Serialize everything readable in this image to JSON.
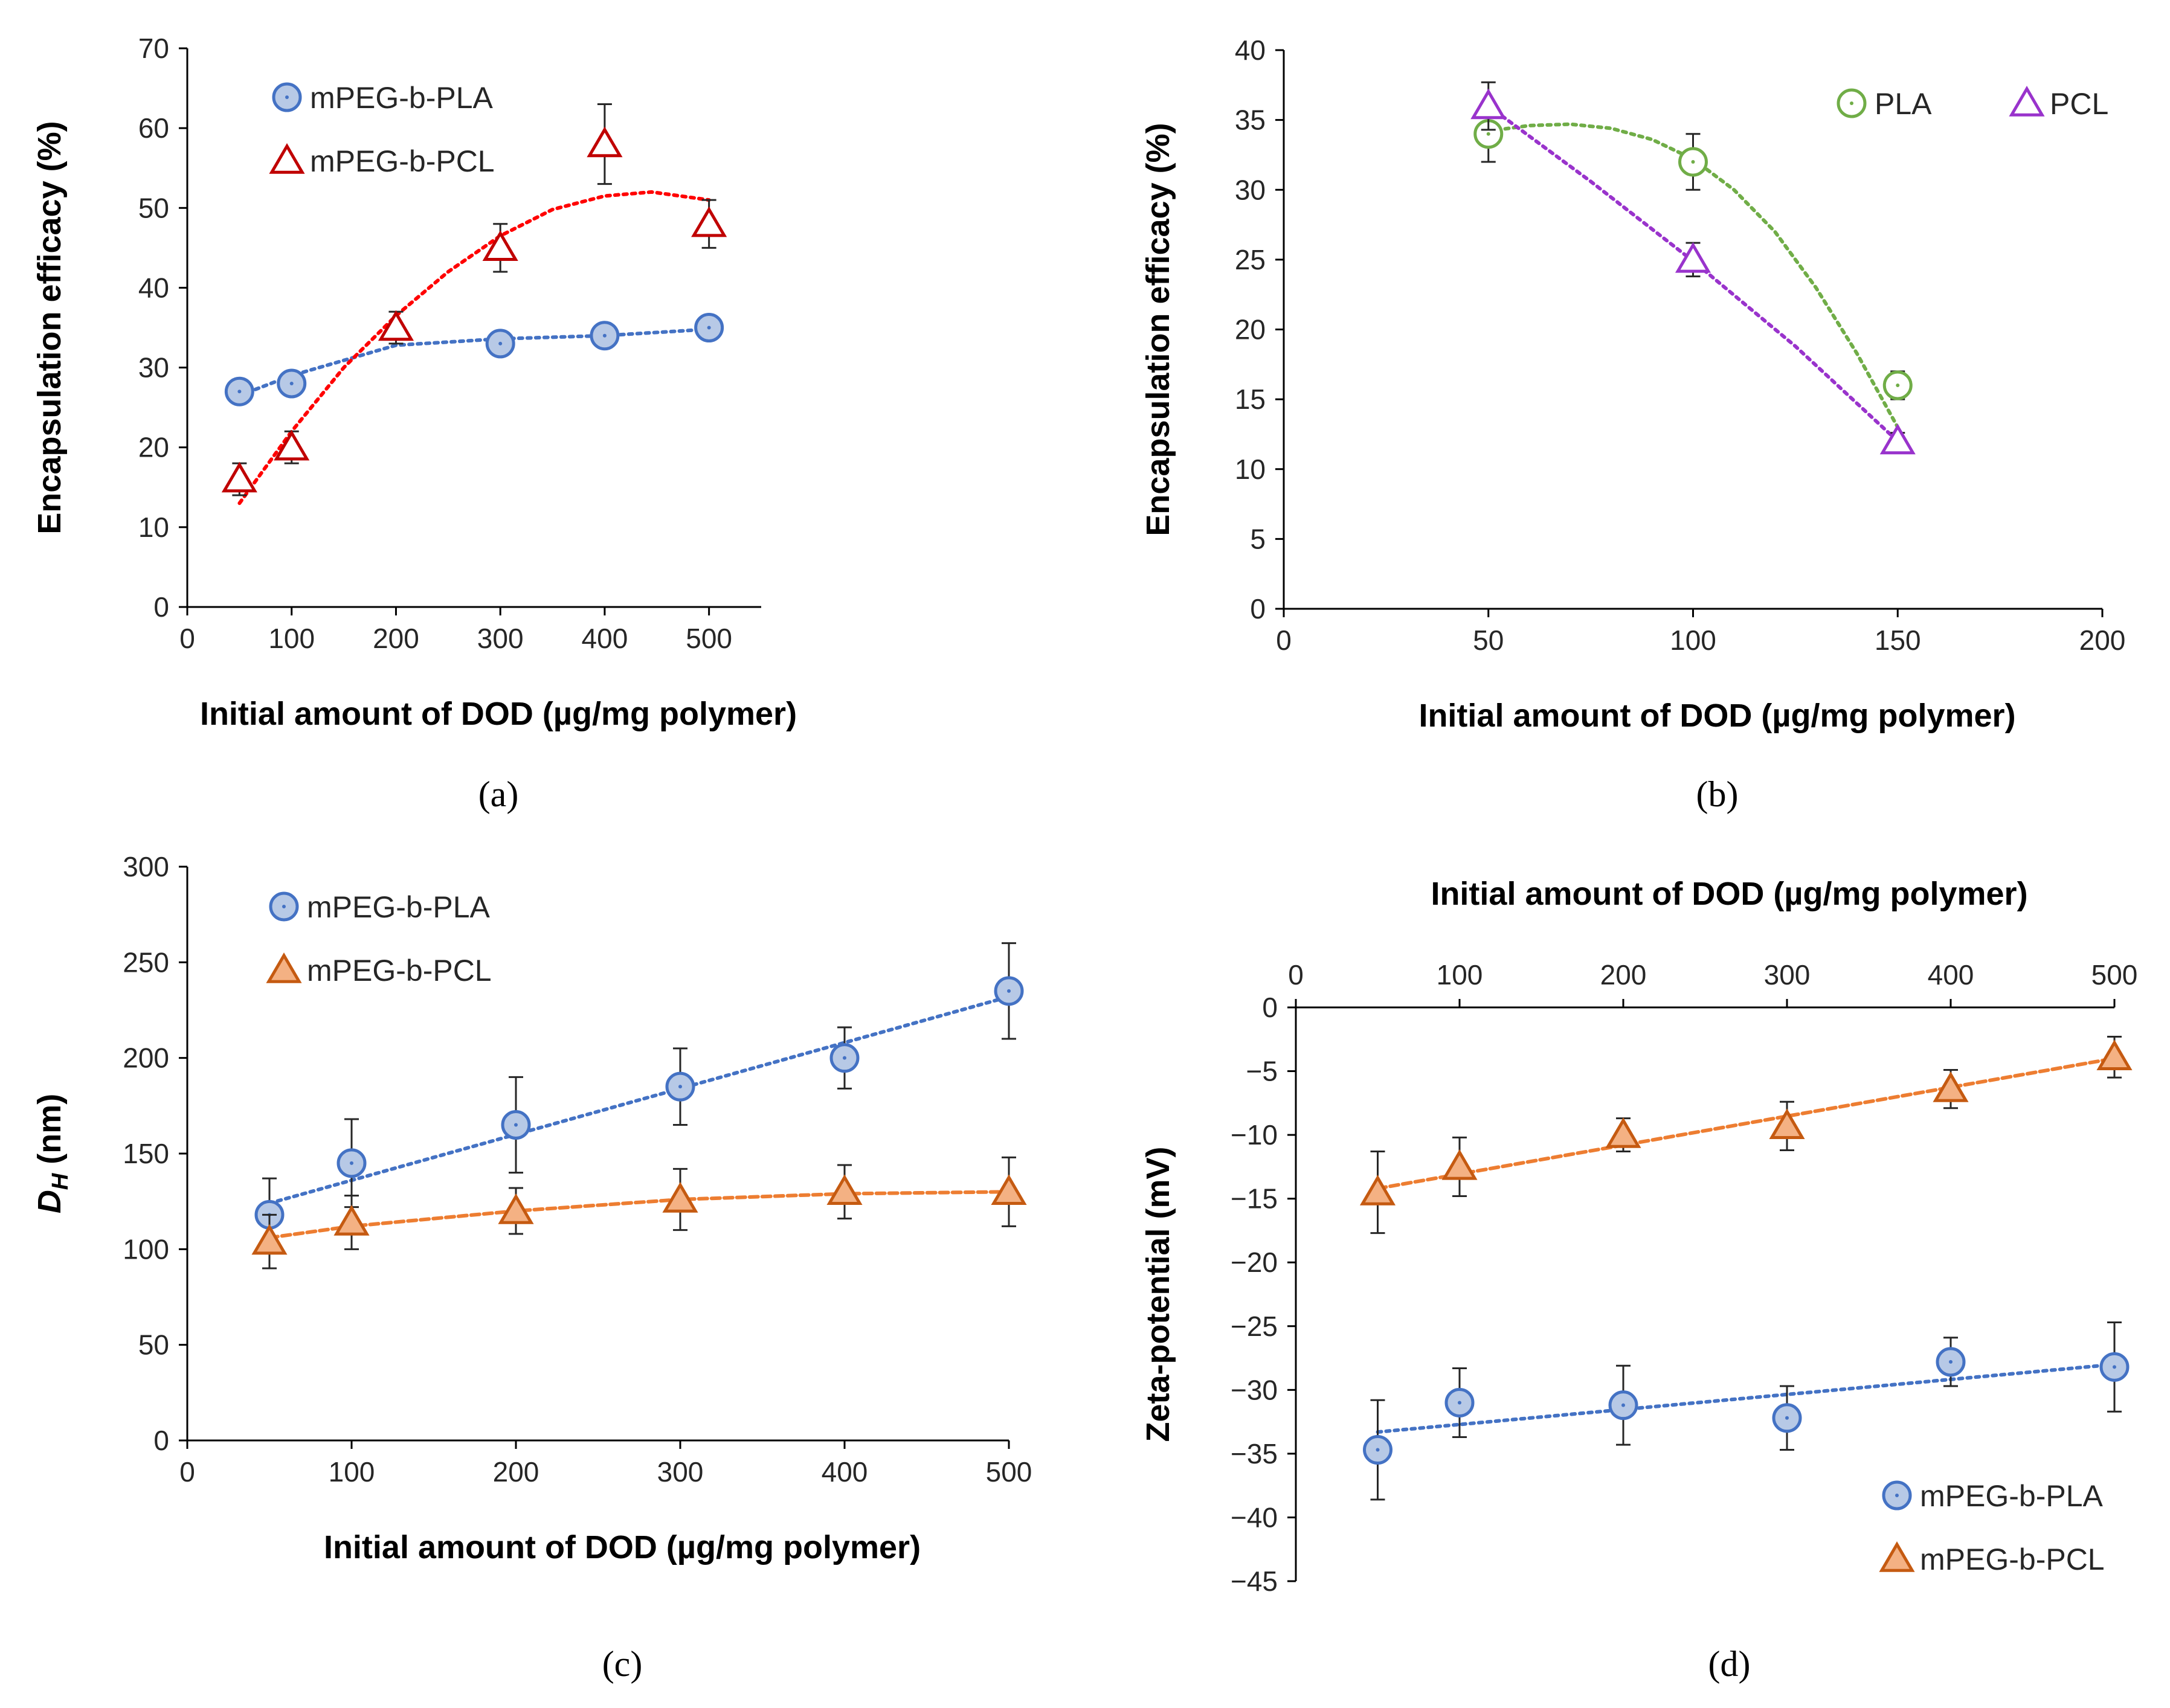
{
  "chart_data": [
    {
      "panel": "a",
      "panel_label": "(a)",
      "type": "scatter",
      "xlabel": "Initial amount of DOD (µg/mg polymer)",
      "ylabel": "Encapsulation efficacy (%)",
      "xlim": [
        0,
        550
      ],
      "ylim": [
        0,
        70
      ],
      "xticks": [
        0,
        100,
        200,
        300,
        400,
        500
      ],
      "yticks": [
        0,
        10,
        20,
        30,
        40,
        50,
        60,
        70
      ],
      "x_axis_position": "bottom",
      "legend_position": "top-left",
      "series": [
        {
          "name": "mPEG-b-PLA",
          "marker": "circle",
          "fill": "#b7c9e6",
          "stroke": "#4472c4",
          "trend_color": "#4472c4",
          "x": [
            50,
            100,
            300,
            400,
            500
          ],
          "y": [
            27,
            28,
            33,
            34,
            35
          ],
          "err": [
            0,
            0,
            0,
            0,
            0
          ],
          "trend_x": [
            50,
            100,
            200,
            300,
            400,
            500
          ],
          "trend_y": [
            26.5,
            29,
            32.8,
            33.6,
            34,
            34.8
          ]
        },
        {
          "name": "mPEG-b-PCL",
          "marker": "triangle",
          "fill": "#ffffff",
          "stroke": "#c00000",
          "trend_color": "#ff0000",
          "x": [
            50,
            100,
            200,
            300,
            400,
            500
          ],
          "y": [
            16,
            20,
            35,
            45,
            58,
            48
          ],
          "err": [
            2,
            2,
            2,
            3,
            5,
            3
          ],
          "trend_x": [
            50,
            100,
            150,
            200,
            250,
            300,
            350,
            400,
            445,
            500
          ],
          "trend_y": [
            13,
            22,
            30,
            36.5,
            42,
            46.5,
            49.8,
            51.5,
            52,
            51
          ]
        }
      ]
    },
    {
      "panel": "b",
      "panel_label": "(b)",
      "type": "scatter",
      "xlabel": "Initial amount of DOD (µg/mg polymer)",
      "ylabel": "Encapsulation efficacy (%)",
      "xlim": [
        0,
        200
      ],
      "ylim": [
        0,
        40
      ],
      "xticks": [
        0,
        50,
        100,
        150,
        200
      ],
      "yticks": [
        0,
        5,
        10,
        15,
        20,
        25,
        30,
        35,
        40
      ],
      "x_axis_position": "bottom",
      "legend_position": "top-right",
      "series": [
        {
          "name": "PLA",
          "marker": "circle",
          "fill": "#ffffff",
          "stroke": "#70ad47",
          "trend_color": "#70ad47",
          "x": [
            50,
            100,
            150
          ],
          "y": [
            34,
            32,
            16
          ],
          "err": [
            2,
            2,
            1
          ],
          "trend_x": [
            50,
            60,
            70,
            80,
            90,
            100,
            110,
            120,
            130,
            140,
            150
          ],
          "trend_y": [
            34.2,
            34.6,
            34.7,
            34.4,
            33.6,
            32.2,
            30,
            27,
            23,
            18.3,
            13
          ]
        },
        {
          "name": "PCL",
          "marker": "triangle",
          "fill": "#ffffff",
          "stroke": "#9933cc",
          "trend_color": "#9933cc",
          "x": [
            50,
            100,
            150
          ],
          "y": [
            36,
            25,
            12
          ],
          "err": [
            1.7,
            1.2,
            0.6
          ],
          "trend_x": [
            50,
            75,
            100,
            125,
            150
          ],
          "trend_y": [
            36,
            30.6,
            24.9,
            18.8,
            12
          ]
        }
      ]
    },
    {
      "panel": "c",
      "panel_label": "(c)",
      "type": "scatter",
      "xlabel": "Initial amount of DOD (µg/mg polymer)",
      "ylabel": "D_H (nm)",
      "ylabel_main": "D",
      "ylabel_sub": "H",
      "ylabel_unit": " (nm)",
      "xlim": [
        0,
        500
      ],
      "ylim": [
        0,
        300
      ],
      "xticks": [
        0,
        100,
        200,
        300,
        400,
        500
      ],
      "yticks": [
        0,
        50,
        100,
        150,
        200,
        250,
        300
      ],
      "x_axis_position": "bottom",
      "legend_position": "top-left",
      "series": [
        {
          "name": "mPEG-b-PLA",
          "marker": "circle",
          "fill": "#b7c9e6",
          "stroke": "#4472c4",
          "trend_color": "#4472c4",
          "x": [
            50,
            100,
            200,
            300,
            400,
            500
          ],
          "y": [
            118,
            145,
            165,
            185,
            200,
            235
          ],
          "err": [
            19,
            23,
            25,
            20,
            16,
            25
          ],
          "trend_x": [
            50,
            500
          ],
          "trend_y": [
            124,
            232
          ]
        },
        {
          "name": "mPEG-b-PCL",
          "marker": "triangle",
          "fill": "#f4b183",
          "stroke": "#c55a11",
          "trend_color": "#ed7d31",
          "x": [
            50,
            100,
            200,
            300,
            400,
            500
          ],
          "y": [
            104,
            114,
            120,
            126,
            130,
            130
          ],
          "err": [
            14,
            14,
            12,
            16,
            14,
            18
          ],
          "trend_x": [
            50,
            100,
            200,
            300,
            400,
            500
          ],
          "trend_y": [
            106,
            112,
            120,
            126,
            129,
            130
          ]
        }
      ]
    },
    {
      "panel": "d",
      "panel_label": "(d)",
      "type": "scatter",
      "xlabel": "Initial amount of DOD (µg/mg polymer)",
      "ylabel": "Zeta-potential (mV)",
      "xlim": [
        0,
        500
      ],
      "ylim": [
        -45,
        0
      ],
      "xticks": [
        0,
        100,
        200,
        300,
        400,
        500
      ],
      "yticks": [
        0,
        -5,
        -10,
        -15,
        -20,
        -25,
        -30,
        -35,
        -40,
        -45
      ],
      "ytick_labels": [
        "0",
        "−5",
        "−10",
        "−15",
        "−20",
        "−25",
        "−30",
        "−35",
        "−40",
        "−45"
      ],
      "x_axis_position": "top",
      "legend_position": "bottom-right",
      "series": [
        {
          "name": "mPEG-b-PLA",
          "marker": "circle",
          "fill": "#b7c9e6",
          "stroke": "#4472c4",
          "trend_color": "#4472c4",
          "x": [
            50,
            100,
            200,
            300,
            400,
            500
          ],
          "y": [
            -34.7,
            -31,
            -31.2,
            -32.2,
            -27.8,
            -28.2
          ],
          "err": [
            3.9,
            2.7,
            3.1,
            2.5,
            1.9,
            3.5
          ],
          "trend_x": [
            50,
            500
          ],
          "trend_y": [
            -33.3,
            -28
          ]
        },
        {
          "name": "mPEG-b-PCL",
          "marker": "triangle",
          "fill": "#f4b183",
          "stroke": "#c55a11",
          "trend_color": "#ed7d31",
          "x": [
            50,
            100,
            200,
            300,
            400,
            500
          ],
          "y": [
            -14.5,
            -12.5,
            -10,
            -9.3,
            -6.4,
            -3.9
          ],
          "err": [
            3.2,
            2.3,
            1.3,
            1.9,
            1.5,
            1.6
          ],
          "trend_x": [
            50,
            500
          ],
          "trend_y": [
            -14.2,
            -4
          ]
        }
      ]
    }
  ]
}
